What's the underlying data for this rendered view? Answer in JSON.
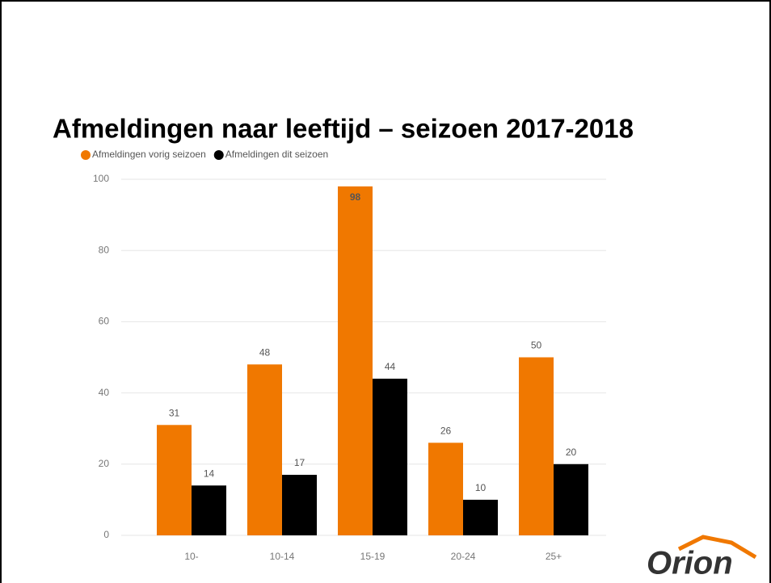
{
  "chart_data": {
    "type": "bar",
    "title": "Afmeldingen naar leeftijd – seizoen 2017-2018",
    "categories": [
      "10-",
      "10-14",
      "15-19",
      "20-24",
      "25+"
    ],
    "series": [
      {
        "name": "Afmeldingen vorig seizoen",
        "color": "#f07800",
        "values": [
          31,
          48,
          98,
          26,
          50
        ]
      },
      {
        "name": "Afmeldingen dit seizoen",
        "color": "#000000",
        "values": [
          14,
          17,
          44,
          10,
          20
        ]
      }
    ],
    "ylim": [
      0,
      100
    ],
    "yticks": [
      0,
      20,
      40,
      60,
      80,
      100
    ],
    "grid": true,
    "legend": "top-left"
  },
  "logo": "Orion"
}
